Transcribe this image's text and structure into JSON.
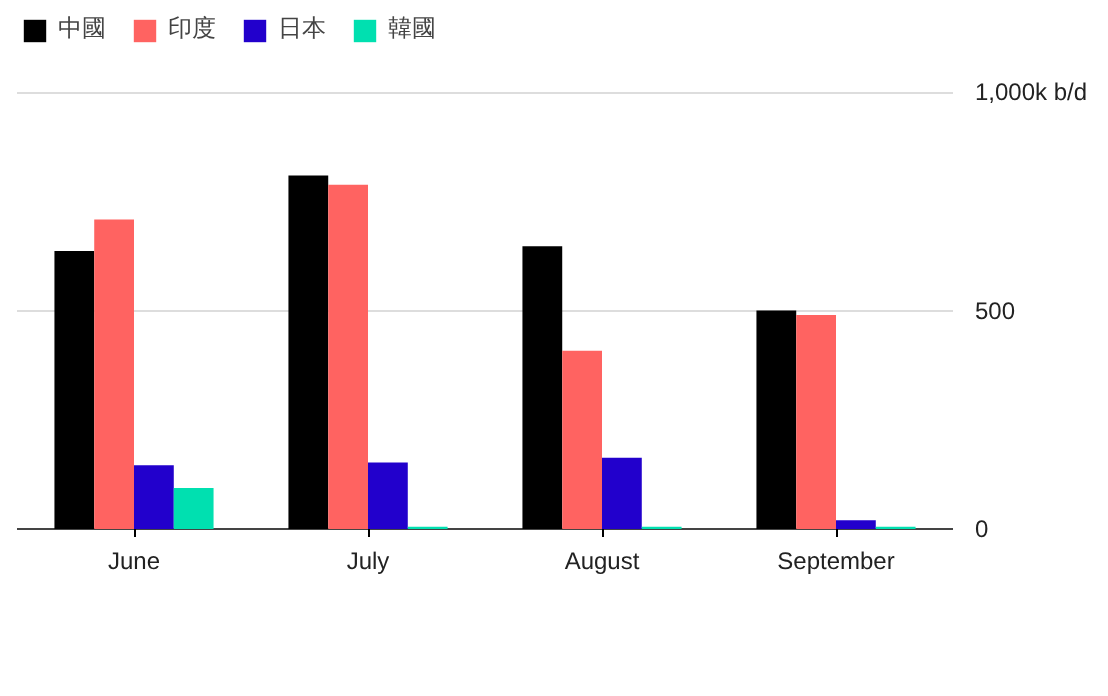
{
  "chart_data": {
    "type": "bar",
    "categories": [
      "June",
      "July",
      "August",
      "September"
    ],
    "series": [
      {
        "name": "中國",
        "color": "#000000",
        "values": [
          636,
          809,
          647,
          500
        ]
      },
      {
        "name": "印度",
        "color": "#ff6361",
        "values": [
          708,
          788,
          408,
          490
        ]
      },
      {
        "name": "日本",
        "color": "#2200cc",
        "values": [
          146,
          152,
          163,
          20
        ]
      },
      {
        "name": "韓國",
        "color": "#00e0b0",
        "values": [
          94,
          5,
          5,
          5
        ]
      }
    ],
    "ylim": [
      0,
      1190
    ],
    "yticks": [
      0,
      500,
      {
        "value": 1000,
        "label": "1,000k b/d"
      }
    ],
    "grid": "y",
    "legend": "top left"
  }
}
